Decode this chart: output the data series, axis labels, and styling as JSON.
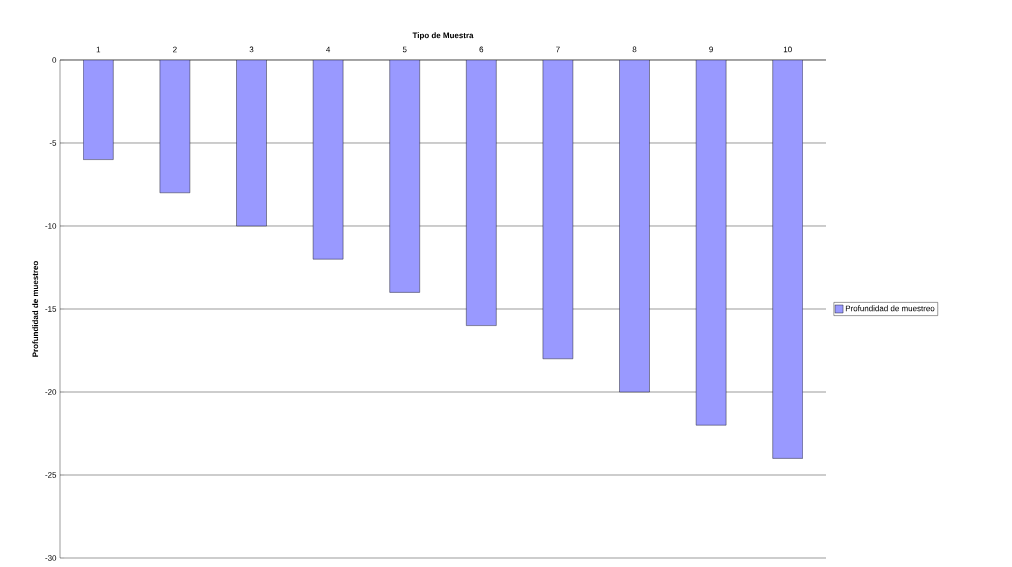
{
  "chart_data": {
    "type": "bar",
    "xlabel": "Tipo de Muestra",
    "ylabel": "Profundidad de muestreo",
    "categories": [
      "1",
      "2",
      "3",
      "4",
      "5",
      "6",
      "7",
      "8",
      "9",
      "10"
    ],
    "series": [
      {
        "name": "Profundidad de muestreo",
        "color": "#9999ff",
        "values": [
          -6,
          -8,
          -10,
          -12,
          -14,
          -16,
          -18,
          -20,
          -22,
          -24
        ]
      }
    ],
    "ylim": [
      -30,
      0
    ],
    "yticks": [
      -30,
      -25,
      -20,
      -15,
      -10,
      -5,
      0
    ],
    "grid": "y",
    "legend": "right"
  }
}
